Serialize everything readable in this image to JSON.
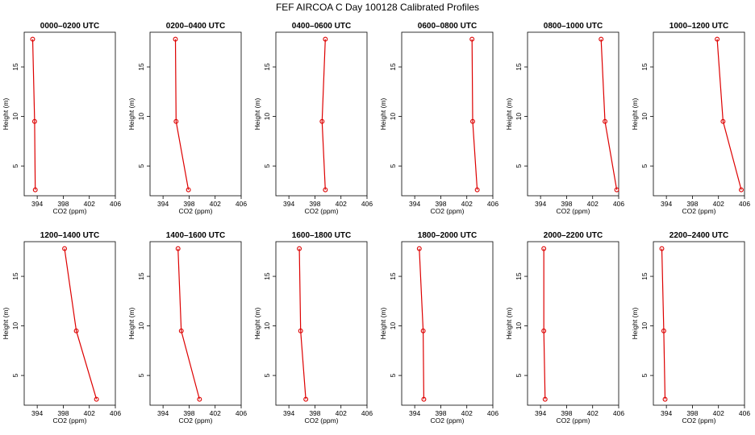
{
  "figure": {
    "title": "FEF AIRCOA C  Day 100128  Calibrated Profiles"
  },
  "colors": {
    "line": "#dd0000",
    "axis": "#000000"
  },
  "chart_data": [
    {
      "type": "line",
      "title": "0000–0200 UTC",
      "xlabel": "CO2 (ppm)",
      "ylabel": "Height (m)",
      "xlim": [
        392,
        406
      ],
      "ylim": [
        2,
        18.5
      ],
      "xticks": [
        "394",
        "398",
        "402",
        "406"
      ],
      "yticks": [
        "5",
        "10",
        "15"
      ],
      "series": [
        {
          "x": [
            393.3,
            393.6,
            393.7
          ],
          "y": [
            17.8,
            9.5,
            2.6
          ]
        }
      ]
    },
    {
      "type": "line",
      "title": "0200–0400 UTC",
      "xlabel": "CO2 (ppm)",
      "ylabel": "Height (m)",
      "xlim": [
        392,
        406
      ],
      "ylim": [
        2,
        18.5
      ],
      "xticks": [
        "394",
        "398",
        "402",
        "406"
      ],
      "yticks": [
        "5",
        "10",
        "15"
      ],
      "series": [
        {
          "x": [
            395.9,
            396.0,
            397.9
          ],
          "y": [
            17.8,
            9.5,
            2.6
          ]
        }
      ]
    },
    {
      "type": "line",
      "title": "0400–0600 UTC",
      "xlabel": "CO2 (ppm)",
      "ylabel": "Height (m)",
      "xlim": [
        392,
        406
      ],
      "ylim": [
        2,
        18.5
      ],
      "xticks": [
        "394",
        "398",
        "402",
        "406"
      ],
      "yticks": [
        "5",
        "10",
        "15"
      ],
      "series": [
        {
          "x": [
            399.6,
            399.1,
            399.6
          ],
          "y": [
            17.8,
            9.5,
            2.6
          ]
        }
      ]
    },
    {
      "type": "line",
      "title": "0600–0800 UTC",
      "xlabel": "CO2 (ppm)",
      "ylabel": "Height (m)",
      "xlim": [
        392,
        406
      ],
      "ylim": [
        2,
        18.5
      ],
      "xticks": [
        "394",
        "398",
        "402",
        "406"
      ],
      "yticks": [
        "5",
        "10",
        "15"
      ],
      "series": [
        {
          "x": [
            402.8,
            402.9,
            403.6
          ],
          "y": [
            17.8,
            9.5,
            2.6
          ]
        }
      ]
    },
    {
      "type": "line",
      "title": "0800–1000 UTC",
      "xlabel": "CO2 (ppm)",
      "ylabel": "Height (m)",
      "xlim": [
        392,
        406
      ],
      "ylim": [
        2,
        18.5
      ],
      "xticks": [
        "394",
        "398",
        "402",
        "406"
      ],
      "yticks": [
        "5",
        "10",
        "15"
      ],
      "series": [
        {
          "x": [
            403.3,
            403.9,
            405.7
          ],
          "y": [
            17.8,
            9.5,
            2.6
          ]
        }
      ]
    },
    {
      "type": "line",
      "title": "1000–1200 UTC",
      "xlabel": "CO2 (ppm)",
      "ylabel": "Height (m)",
      "xlim": [
        392,
        406
      ],
      "ylim": [
        2,
        18.5
      ],
      "xticks": [
        "394",
        "398",
        "402",
        "406"
      ],
      "yticks": [
        "5",
        "10",
        "15"
      ],
      "series": [
        {
          "x": [
            401.8,
            402.7,
            405.5
          ],
          "y": [
            17.8,
            9.5,
            2.6
          ]
        }
      ]
    },
    {
      "type": "line",
      "title": "1200–1400 UTC",
      "xlabel": "CO2 (ppm)",
      "ylabel": "Height (m)",
      "xlim": [
        392,
        406
      ],
      "ylim": [
        2,
        18.5
      ],
      "xticks": [
        "394",
        "398",
        "402",
        "406"
      ],
      "yticks": [
        "5",
        "10",
        "15"
      ],
      "series": [
        {
          "x": [
            398.2,
            400.0,
            403.1
          ],
          "y": [
            17.8,
            9.5,
            2.6
          ]
        }
      ]
    },
    {
      "type": "line",
      "title": "1400–1600 UTC",
      "xlabel": "CO2 (ppm)",
      "ylabel": "Height (m)",
      "xlim": [
        392,
        406
      ],
      "ylim": [
        2,
        18.5
      ],
      "xticks": [
        "394",
        "398",
        "402",
        "406"
      ],
      "yticks": [
        "5",
        "10",
        "15"
      ],
      "series": [
        {
          "x": [
            396.3,
            396.8,
            399.6
          ],
          "y": [
            17.8,
            9.5,
            2.6
          ]
        }
      ]
    },
    {
      "type": "line",
      "title": "1600–1800 UTC",
      "xlabel": "CO2 (ppm)",
      "ylabel": "Height (m)",
      "xlim": [
        392,
        406
      ],
      "ylim": [
        2,
        18.5
      ],
      "xticks": [
        "394",
        "398",
        "402",
        "406"
      ],
      "yticks": [
        "5",
        "10",
        "15"
      ],
      "series": [
        {
          "x": [
            395.6,
            395.8,
            396.6
          ],
          "y": [
            17.8,
            9.5,
            2.6
          ]
        }
      ]
    },
    {
      "type": "line",
      "title": "1800–2000 UTC",
      "xlabel": "CO2 (ppm)",
      "ylabel": "Height (m)",
      "xlim": [
        392,
        406
      ],
      "ylim": [
        2,
        18.5
      ],
      "xticks": [
        "394",
        "398",
        "402",
        "406"
      ],
      "yticks": [
        "5",
        "10",
        "15"
      ],
      "series": [
        {
          "x": [
            394.7,
            395.3,
            395.4
          ],
          "y": [
            17.8,
            9.5,
            2.6
          ]
        }
      ]
    },
    {
      "type": "line",
      "title": "2000–2200 UTC",
      "xlabel": "CO2 (ppm)",
      "ylabel": "Height (m)",
      "xlim": [
        392,
        406
      ],
      "ylim": [
        2,
        18.5
      ],
      "xticks": [
        "394",
        "398",
        "402",
        "406"
      ],
      "yticks": [
        "5",
        "10",
        "15"
      ],
      "series": [
        {
          "x": [
            394.5,
            394.5,
            394.7
          ],
          "y": [
            17.8,
            9.5,
            2.6
          ]
        }
      ]
    },
    {
      "type": "line",
      "title": "2200–2400 UTC",
      "xlabel": "CO2 (ppm)",
      "ylabel": "Height (m)",
      "xlim": [
        392,
        406
      ],
      "ylim": [
        2,
        18.5
      ],
      "xticks": [
        "394",
        "398",
        "402",
        "406"
      ],
      "yticks": [
        "5",
        "10",
        "15"
      ],
      "series": [
        {
          "x": [
            393.3,
            393.6,
            393.8
          ],
          "y": [
            17.8,
            9.5,
            2.6
          ]
        }
      ]
    }
  ]
}
